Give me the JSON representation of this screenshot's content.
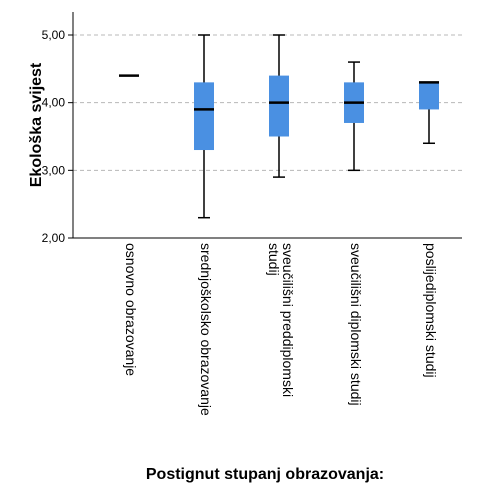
{
  "chart_data": {
    "type": "boxplot",
    "ylabel": "Ekološka svijest",
    "xlabel": "Postignut stupanj obrazovanja:",
    "ylim": [
      2.0,
      5.0
    ],
    "yticks": [
      2.0,
      3.0,
      4.0,
      5.0
    ],
    "ytick_labels": [
      "2,00",
      "3,00",
      "4,00",
      "5,00"
    ],
    "grid": true,
    "box_color": "#4a90e2",
    "categories": [
      {
        "label_lines": [
          "osnovno obrazovanje"
        ],
        "min": 4.4,
        "q1": 4.4,
        "median": 4.4,
        "q3": 4.4,
        "max": 4.4
      },
      {
        "label_lines": [
          "srednjoškolsko obrazovanje"
        ],
        "min": 2.3,
        "q1": 3.3,
        "median": 3.9,
        "q3": 4.3,
        "max": 5.0
      },
      {
        "label_lines": [
          "sveučilišni preddiplomski",
          "studij"
        ],
        "min": 2.9,
        "q1": 3.5,
        "median": 4.0,
        "q3": 4.4,
        "max": 5.0
      },
      {
        "label_lines": [
          "sveučilišni diplomski studij"
        ],
        "min": 3.0,
        "q1": 3.7,
        "median": 4.0,
        "q3": 4.3,
        "max": 4.6
      },
      {
        "label_lines": [
          "poslijediplomski studij"
        ],
        "min": 3.4,
        "q1": 3.9,
        "median": 4.3,
        "q3": 4.3,
        "max": 4.3
      }
    ]
  }
}
